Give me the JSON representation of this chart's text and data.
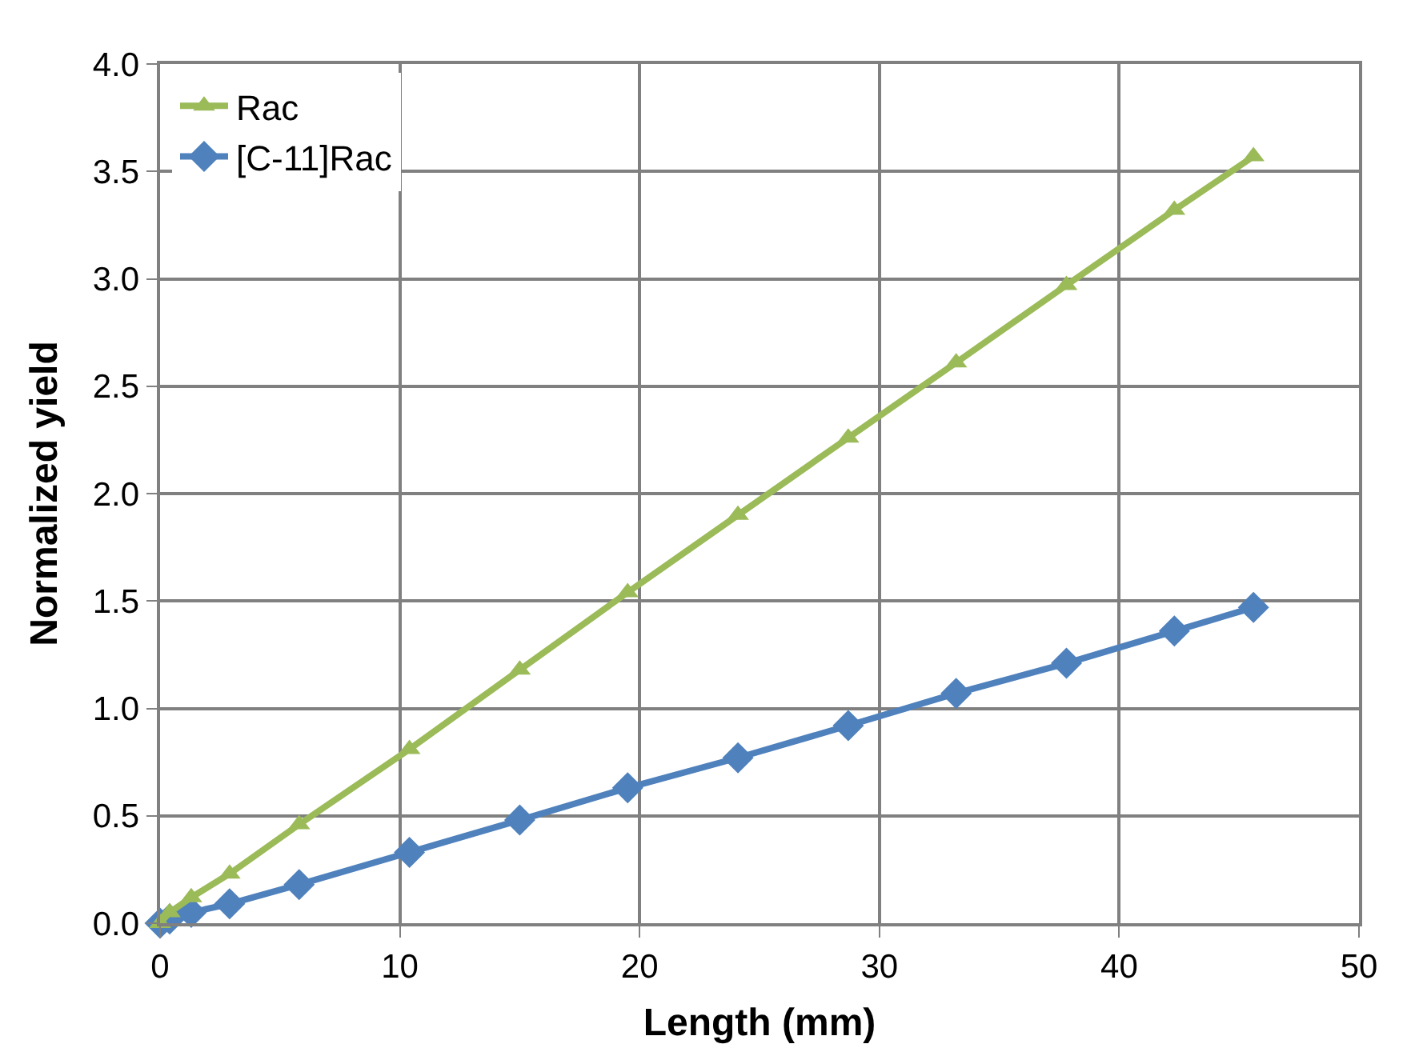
{
  "chart_data": {
    "type": "line",
    "xlabel": "Length (mm)",
    "ylabel": "Normalized yield",
    "x": [
      0,
      0.4,
      1.3,
      2.9,
      5.8,
      10.4,
      15.0,
      19.5,
      24.1,
      28.7,
      33.2,
      37.8,
      42.3,
      45.6
    ],
    "series": [
      {
        "name": "Rac",
        "color": "#9bbb59",
        "marker": "triangle",
        "values": [
          0,
          0.05,
          0.12,
          0.23,
          0.46,
          0.81,
          1.18,
          1.54,
          1.9,
          2.26,
          2.61,
          2.97,
          3.32,
          3.57
        ]
      },
      {
        "name": "[C-11]Rac",
        "color": "#4f81bd",
        "marker": "diamond",
        "values": [
          0,
          0.02,
          0.05,
          0.09,
          0.18,
          0.33,
          0.48,
          0.63,
          0.77,
          0.92,
          1.07,
          1.21,
          1.36,
          1.47
        ]
      }
    ],
    "xlim": [
      0,
      50
    ],
    "xticks": [
      0,
      10,
      20,
      30,
      40,
      50
    ],
    "ylim": [
      0,
      4
    ],
    "yticks": [
      {
        "value": 0,
        "label": "0.0"
      },
      {
        "value": 0.5,
        "label": "0.5"
      },
      {
        "value": 1,
        "label": "1.0"
      },
      {
        "value": 1.5,
        "label": "1.5"
      },
      {
        "value": 2,
        "label": "2.0"
      },
      {
        "value": 2.5,
        "label": "2.5"
      },
      {
        "value": 3,
        "label": "3.0"
      },
      {
        "value": 3.5,
        "label": "3.5"
      },
      {
        "value": 4,
        "label": "4.0"
      }
    ],
    "grid": true,
    "legend": "top left",
    "line_style": "solid"
  }
}
